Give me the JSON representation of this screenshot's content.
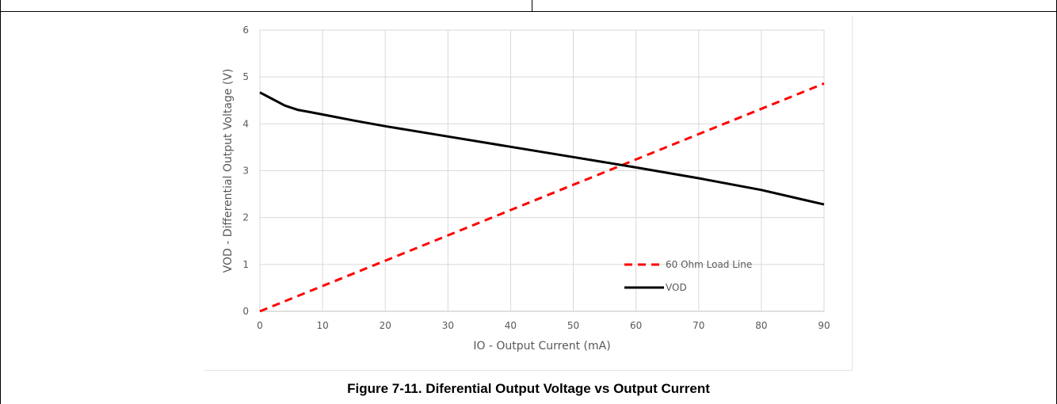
{
  "figure": {
    "caption": "Figure 7-11. Diferential Output Voltage vs Output Current"
  },
  "chart_data": {
    "type": "line",
    "title": "",
    "xlabel": "IO - Output Current (mA)",
    "ylabel": "VOD - Differential Output Voltage (V)",
    "xlim": [
      0,
      90
    ],
    "ylim": [
      0,
      6
    ],
    "xticks": [
      0,
      10,
      20,
      30,
      40,
      50,
      60,
      70,
      80,
      90
    ],
    "yticks": [
      0,
      1,
      2,
      3,
      4,
      5,
      6
    ],
    "grid": true,
    "legend_position": "lower-right",
    "series": [
      {
        "name": "60 Ohm Load Line",
        "style": "dashed",
        "color": "#ff0000",
        "x": [
          0,
          90
        ],
        "y": [
          0,
          4.86
        ]
      },
      {
        "name": "VOD",
        "style": "solid",
        "color": "#000000",
        "x": [
          0,
          2,
          4,
          6,
          8,
          10,
          15,
          20,
          30,
          40,
          50,
          60,
          70,
          80,
          90
        ],
        "y": [
          4.67,
          4.53,
          4.39,
          4.3,
          4.25,
          4.2,
          4.07,
          3.95,
          3.73,
          3.51,
          3.29,
          3.07,
          2.84,
          2.59,
          2.28
        ]
      }
    ]
  }
}
